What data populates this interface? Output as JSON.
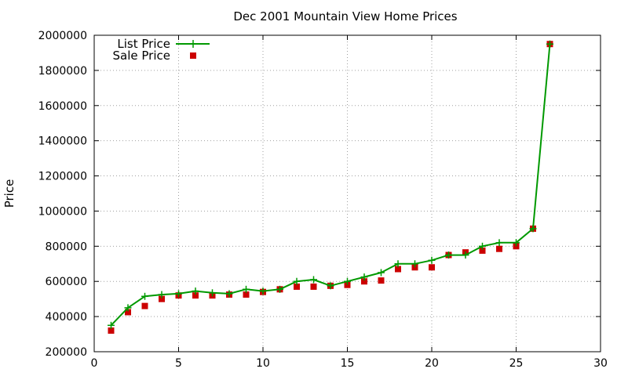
{
  "chart_data": {
    "type": "line",
    "title": "Dec 2001 Mountain View Home Prices",
    "xlabel": "",
    "ylabel": "Price",
    "xlim": [
      0,
      30
    ],
    "ylim": [
      200000,
      2000000
    ],
    "xticks": [
      0,
      5,
      10,
      15,
      20,
      25,
      30
    ],
    "yticks": [
      200000,
      400000,
      600000,
      800000,
      1000000,
      1200000,
      1400000,
      1600000,
      1800000,
      2000000
    ],
    "grid": true,
    "legend_position": "top-left",
    "series": [
      {
        "name": "List Price",
        "style": "line-with-plus-markers",
        "color": "#009900",
        "x": [
          1,
          2,
          3,
          4,
          5,
          6,
          7,
          8,
          9,
          10,
          11,
          12,
          13,
          14,
          15,
          16,
          17,
          18,
          19,
          20,
          21,
          22,
          23,
          24,
          25,
          26,
          27
        ],
        "values": [
          350000,
          450000,
          515000,
          525000,
          530000,
          545000,
          535000,
          530000,
          555000,
          545000,
          555000,
          600000,
          610000,
          575000,
          600000,
          625000,
          650000,
          700000,
          700000,
          720000,
          750000,
          750000,
          800000,
          820000,
          820000,
          900000,
          1950000
        ]
      },
      {
        "name": "Sale Price",
        "style": "square-markers",
        "color": "#cc0000",
        "x": [
          1,
          2,
          3,
          4,
          5,
          6,
          7,
          8,
          9,
          10,
          11,
          12,
          13,
          14,
          15,
          16,
          17,
          18,
          19,
          20,
          21,
          22,
          23,
          24,
          25,
          26,
          27
        ],
        "values": [
          320000,
          425000,
          460000,
          500000,
          520000,
          520000,
          520000,
          525000,
          525000,
          540000,
          555000,
          570000,
          570000,
          575000,
          580000,
          600000,
          605000,
          670000,
          680000,
          680000,
          750000,
          765000,
          775000,
          785000,
          800000,
          900000,
          1950000
        ]
      }
    ]
  }
}
